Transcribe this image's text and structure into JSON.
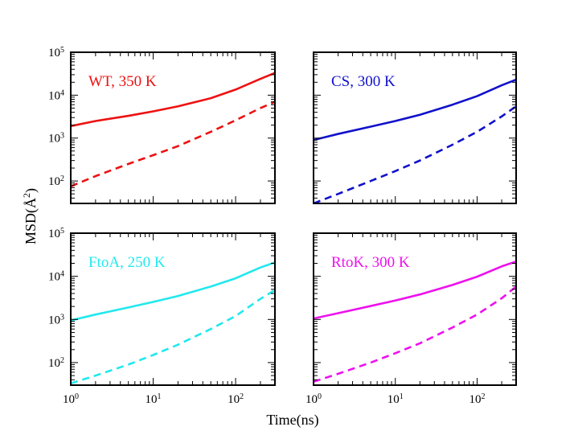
{
  "chart_data": {
    "type": "line",
    "xlabel": "Time(ns)",
    "ylabel": "MSD(Å",
    "ylabel_sup": "2",
    "ylabel_close": ")",
    "x_scale": "log",
    "y_scale": "log",
    "xlim": [
      1,
      300
    ],
    "ylim": [
      30,
      100000
    ],
    "grid": false,
    "x_tick_labels": [
      {
        "value": 1,
        "base": "10",
        "exp": "0"
      },
      {
        "value": 10,
        "base": "10",
        "exp": "1"
      },
      {
        "value": 100,
        "base": "10",
        "exp": "2"
      }
    ],
    "y_tick_labels": [
      {
        "value": 100,
        "base": "10",
        "exp": "2"
      },
      {
        "value": 1000,
        "base": "10",
        "exp": "3"
      },
      {
        "value": 10000,
        "base": "10",
        "exp": "4"
      },
      {
        "value": 100000,
        "base": "10",
        "exp": "5"
      }
    ],
    "panels": [
      {
        "label": "WT, 350 K",
        "color": "#ee1111",
        "series": [
          {
            "style": "solid",
            "x": [
              1,
              2,
              5,
              10,
              20,
              50,
              100,
              200,
              300
            ],
            "y": [
              1900,
              2500,
              3300,
              4200,
              5500,
              8500,
              13500,
              24000,
              33000
            ]
          },
          {
            "style": "dashed",
            "x": [
              1,
              2,
              5,
              10,
              20,
              50,
              100,
              200,
              300
            ],
            "y": [
              75,
              130,
              250,
              400,
              650,
              1400,
              2600,
              5000,
              7000
            ]
          }
        ]
      },
      {
        "label": "CS, 300 K",
        "color": "#1111cc",
        "series": [
          {
            "style": "solid",
            "x": [
              1,
              2,
              5,
              10,
              20,
              50,
              100,
              200,
              300
            ],
            "y": [
              900,
              1250,
              1850,
              2500,
              3500,
              6000,
              9500,
              17000,
              23000
            ]
          },
          {
            "style": "dashed",
            "x": [
              1,
              2,
              5,
              10,
              20,
              50,
              100,
              200,
              300
            ],
            "y": [
              30,
              50,
              100,
              170,
              300,
              700,
              1400,
              3200,
              5500
            ]
          }
        ]
      },
      {
        "label": "FtoA, 250 K",
        "color": "#22e8ee",
        "series": [
          {
            "style": "solid",
            "x": [
              1,
              2,
              5,
              10,
              20,
              50,
              100,
              200,
              300
            ],
            "y": [
              950,
              1300,
              1900,
              2550,
              3500,
              5800,
              9000,
              16000,
              21000
            ]
          },
          {
            "style": "dashed",
            "x": [
              1,
              2,
              5,
              10,
              20,
              50,
              100,
              200,
              300
            ],
            "y": [
              33,
              50,
              90,
              150,
              260,
              600,
              1200,
              3000,
              4800
            ]
          }
        ]
      },
      {
        "label": "RtoK, 300 K",
        "color": "#ee11ee",
        "series": [
          {
            "style": "solid",
            "x": [
              1,
              2,
              5,
              10,
              20,
              50,
              100,
              200,
              300
            ],
            "y": [
              1050,
              1400,
              2050,
              2750,
              3800,
              6300,
              9800,
              17000,
              22000
            ]
          },
          {
            "style": "dashed",
            "x": [
              1,
              2,
              5,
              10,
              20,
              50,
              100,
              200,
              300
            ],
            "y": [
              36,
              55,
              100,
              165,
              280,
              650,
              1300,
              3100,
              5800
            ]
          }
        ]
      }
    ]
  }
}
